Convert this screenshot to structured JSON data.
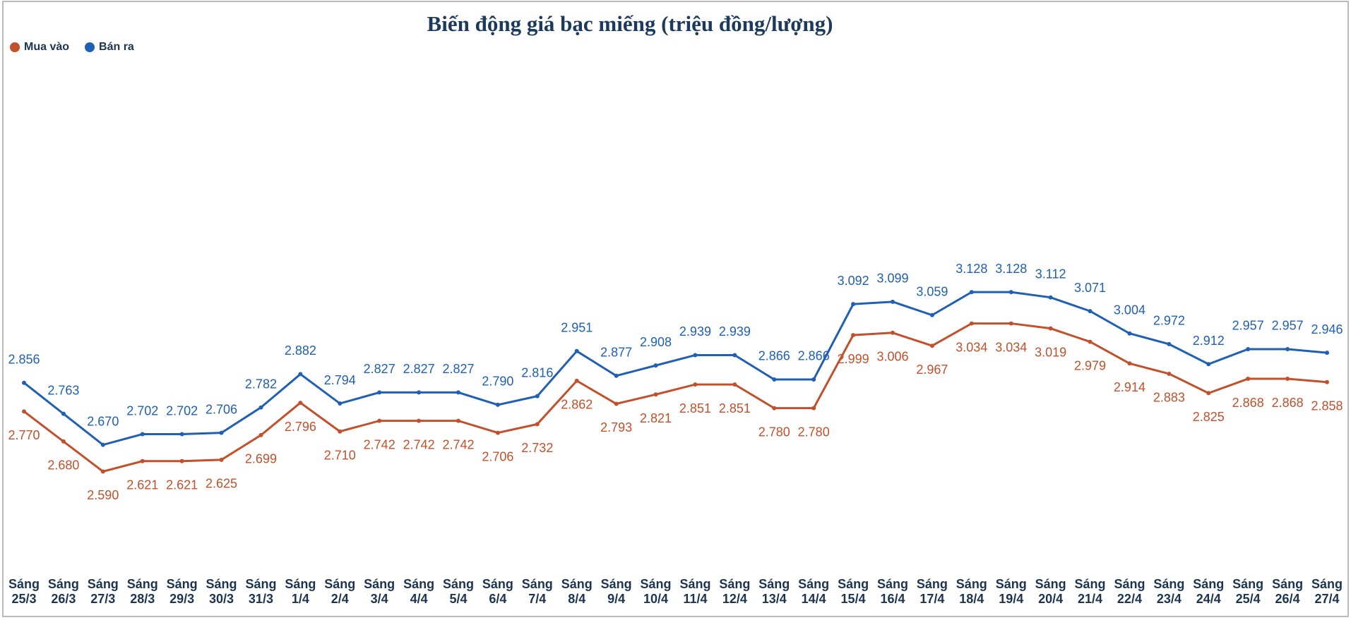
{
  "chart_data": {
    "type": "line",
    "title": "Biến động giá bạc miếng (triệu đồng/lượng)",
    "categories": [
      "Sáng 25/3",
      "Sáng 26/3",
      "Sáng 27/3",
      "Sáng 28/3",
      "Sáng 29/3",
      "Sáng 30/3",
      "Sáng 31/3",
      "Sáng 1/4",
      "Sáng 2/4",
      "Sáng 3/4",
      "Sáng 4/4",
      "Sáng 5/4",
      "Sáng 6/4",
      "Sáng 7/4",
      "Sáng 8/4",
      "Sáng 9/4",
      "Sáng 10/4",
      "Sáng 11/4",
      "Sáng 12/4",
      "Sáng 13/4",
      "Sáng 14/4",
      "Sáng 15/4",
      "Sáng 16/4",
      "Sáng 17/4",
      "Sáng 18/4",
      "Sáng 19/4",
      "Sáng 20/4",
      "Sáng 21/4",
      "Sáng 22/4",
      "Sáng 23/4",
      "Sáng 24/4",
      "Sáng 25/4",
      "Sáng 26/4",
      "Sáng 27/4"
    ],
    "series": [
      {
        "name": "Mua vào",
        "color": "#c2502b",
        "values": [
          2.77,
          2.68,
          2.59,
          2.621,
          2.621,
          2.625,
          2.699,
          2.796,
          2.71,
          2.742,
          2.742,
          2.742,
          2.706,
          2.732,
          2.862,
          2.793,
          2.821,
          2.851,
          2.851,
          2.78,
          2.78,
          2.999,
          3.006,
          2.967,
          3.034,
          3.034,
          3.019,
          2.979,
          2.914,
          2.883,
          2.825,
          2.868,
          2.868,
          2.858
        ],
        "value_labels": [
          "2.770",
          "2.680",
          "2.590",
          "2.621",
          "2.621",
          "2.625",
          "2.699",
          "2.796",
          "2.710",
          "2.742",
          "2.742",
          "2.742",
          "2.706",
          "2.732",
          "2.862",
          "2.793",
          "2.821",
          "2.851",
          "2.851",
          "2.780",
          "2.780",
          "2.999",
          "3.006",
          "2.967",
          "3.034",
          "3.034",
          "3.019",
          "2.979",
          "2.914",
          "2.883",
          "2.825",
          "2.868",
          "2.868",
          "2.858"
        ]
      },
      {
        "name": "Bán ra",
        "color": "#1f5fb4",
        "values": [
          2.856,
          2.763,
          2.67,
          2.702,
          2.702,
          2.706,
          2.782,
          2.882,
          2.794,
          2.827,
          2.827,
          2.827,
          2.79,
          2.816,
          2.951,
          2.877,
          2.908,
          2.939,
          2.939,
          2.866,
          2.866,
          3.092,
          3.099,
          3.059,
          3.128,
          3.128,
          3.112,
          3.071,
          3.004,
          2.972,
          2.912,
          2.957,
          2.957,
          2.946
        ],
        "value_labels": [
          "2.856",
          "2.763",
          "2.670",
          "2.702",
          "2.702",
          "2.706",
          "2.782",
          "2.882",
          "2.794",
          "2.827",
          "2.827",
          "2.827",
          "2.790",
          "2.816",
          "2.951",
          "2.877",
          "2.908",
          "2.939",
          "2.939",
          "2.866",
          "2.866",
          "3.092",
          "3.099",
          "3.059",
          "3.128",
          "3.128",
          "3.112",
          "3.071",
          "3.004",
          "2.972",
          "2.912",
          "2.957",
          "2.957",
          "2.946"
        ]
      }
    ],
    "ylim": [
      2.28,
      3.82
    ]
  }
}
